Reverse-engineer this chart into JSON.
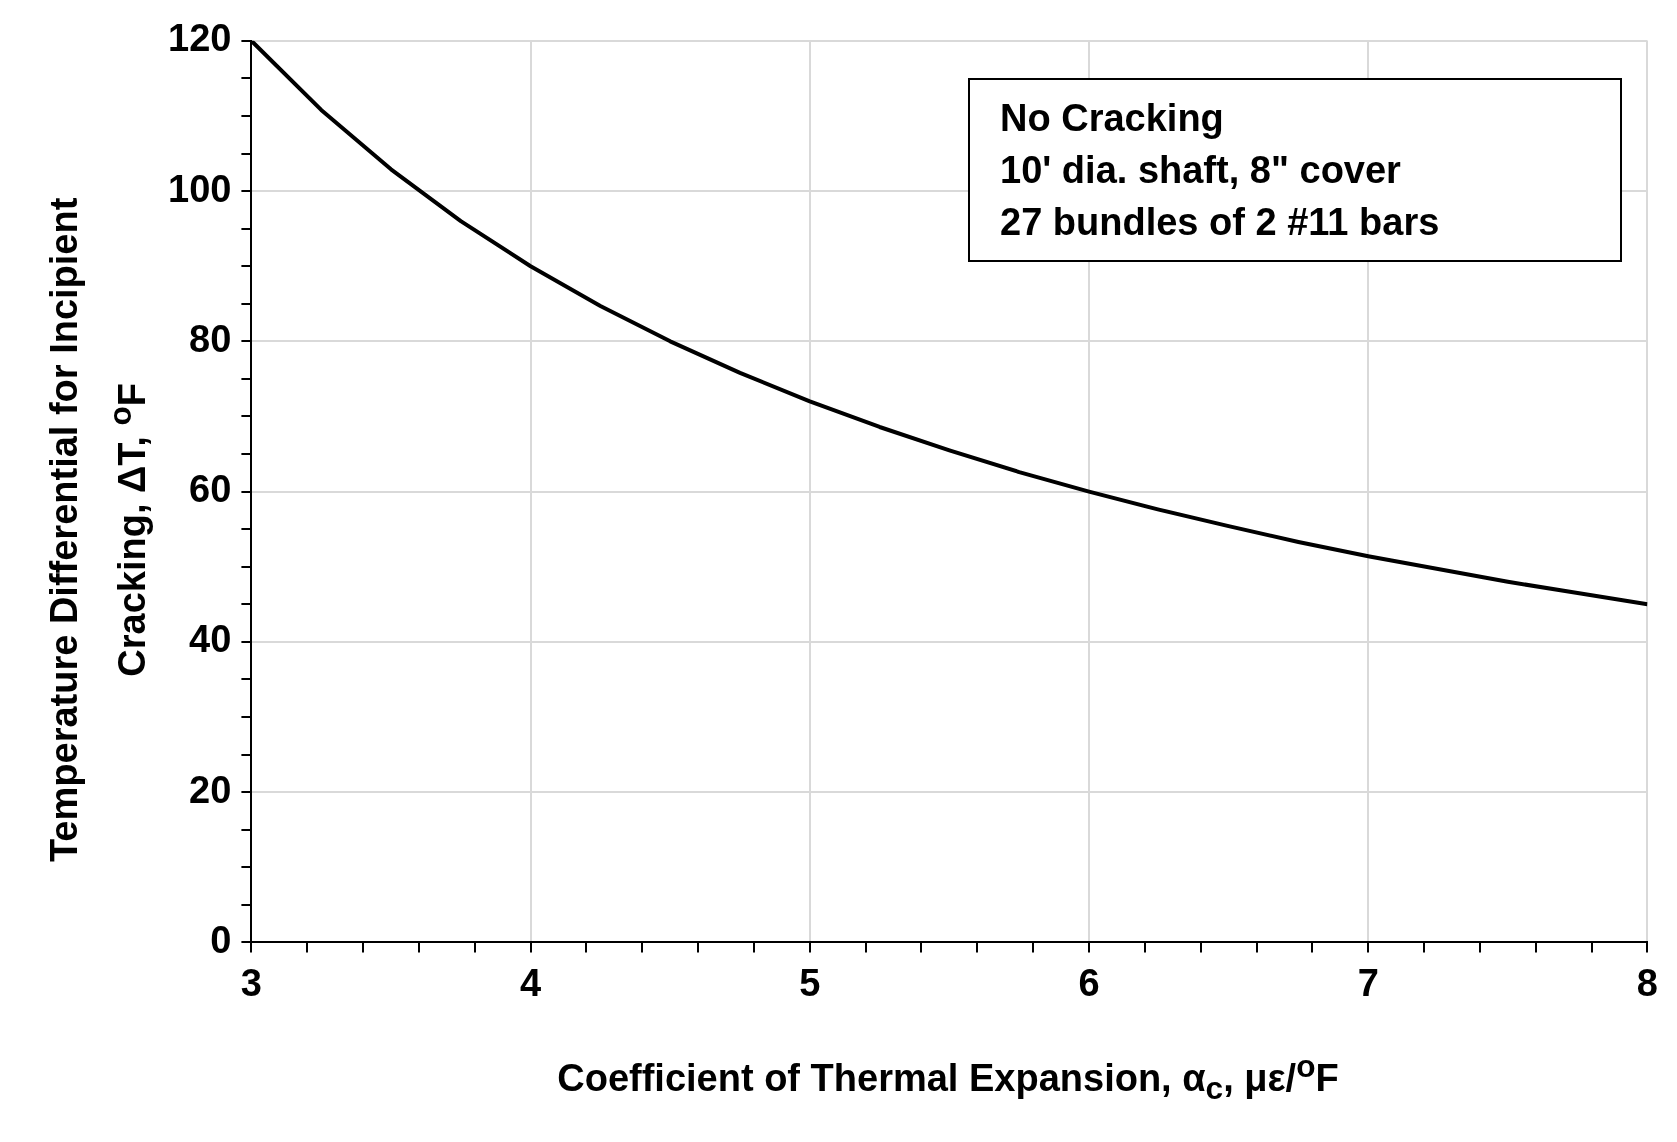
{
  "chart_data": {
    "type": "line",
    "xlabel": "Coefficient of Thermal Expansion, α$_{c}$, με/$^{o}$F",
    "ylabel": "Temperature Differential for Incipient Cracking, ΔT, $^{o}$F",
    "x": [
      3,
      3.25,
      3.5,
      3.75,
      4,
      4.25,
      4.5,
      4.75,
      5,
      5.25,
      5.5,
      5.75,
      6,
      6.25,
      6.5,
      6.75,
      7,
      7.25,
      7.5,
      7.75,
      8
    ],
    "series": [
      {
        "color": "#000000",
        "values": [
          120,
          110.8,
          102.9,
          96,
          90,
          84.7,
          80,
          75.8,
          72,
          68.6,
          65.5,
          62.6,
          60,
          57.6,
          55.4,
          53.3,
          51.4,
          49.7,
          48,
          46.5,
          45
        ]
      }
    ],
    "xlim": [
      3,
      8
    ],
    "xticks": [
      3,
      {
        "value": 3.2,
        "label": null
      },
      {
        "value": 3.4,
        "label": null
      },
      {
        "value": 3.6,
        "label": null
      },
      {
        "value": 3.8,
        "label": null
      },
      4,
      {
        "value": 4.2,
        "label": null
      },
      {
        "value": 4.4,
        "label": null
      },
      {
        "value": 4.6,
        "label": null
      },
      {
        "value": 4.8,
        "label": null
      },
      5,
      {
        "value": 5.2,
        "label": null
      },
      {
        "value": 5.4,
        "label": null
      },
      {
        "value": 5.6,
        "label": null
      },
      {
        "value": 5.8,
        "label": null
      },
      6,
      {
        "value": 6.2,
        "label": null
      },
      {
        "value": 6.4,
        "label": null
      },
      {
        "value": 6.6,
        "label": null
      },
      {
        "value": 6.8,
        "label": null
      },
      7,
      {
        "value": 7.2,
        "label": null
      },
      {
        "value": 7.4,
        "label": null
      },
      {
        "value": 7.6,
        "label": null
      },
      {
        "value": 7.8,
        "label": null
      },
      8
    ],
    "ylim": [
      0,
      120
    ],
    "yticks": [
      0,
      {
        "value": 5,
        "label": null
      },
      {
        "value": 10,
        "label": null
      },
      {
        "value": 15,
        "label": null
      },
      20,
      {
        "value": 25,
        "label": null
      },
      {
        "value": 30,
        "label": null
      },
      {
        "value": 35,
        "label": null
      },
      40,
      {
        "value": 45,
        "label": null
      },
      {
        "value": 50,
        "label": null
      },
      {
        "value": 55,
        "label": null
      },
      60,
      {
        "value": 65,
        "label": null
      },
      {
        "value": 70,
        "label": null
      },
      {
        "value": 75,
        "label": null
      },
      80,
      {
        "value": 85,
        "label": null
      },
      {
        "value": 90,
        "label": null
      },
      {
        "value": 95,
        "label": null
      },
      100,
      {
        "value": 105,
        "label": null
      },
      {
        "value": 110,
        "label": null
      },
      {
        "value": 115,
        "label": null
      },
      120
    ],
    "grid": true,
    "legend": false,
    "marker": "none",
    "line_style": "solid",
    "annotations": [
      "No Cracking",
      "10' dia. shaft, 8\" cover",
      "27 bundles of 2 #11 bars"
    ]
  }
}
